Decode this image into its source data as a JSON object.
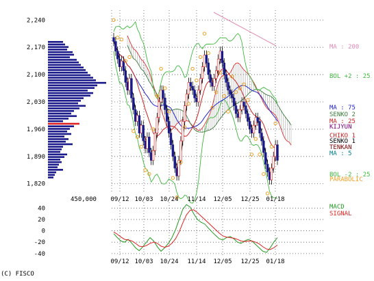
{
  "copyright": "(C) FISCO",
  "chart_data": [
    {
      "type": "candlestick",
      "title": "",
      "x_ticks": [
        "09/12",
        "10/03",
        "10/24",
        "11/14",
        "12/05",
        "12/25",
        "01/18"
      ],
      "y_ticks": [
        2240,
        2170,
        2100,
        2030,
        1960,
        1890,
        1820
      ],
      "ylim": [
        1795,
        2265
      ],
      "grid": true,
      "volume_profile_label": "450,000",
      "legend": [
        {
          "label": "MA : 200",
          "color": "#e08ab5"
        },
        {
          "label": "BOL +2 : 25",
          "color": "#3cb83c"
        },
        {
          "label": "MA : 75",
          "color": "#2222cc"
        },
        {
          "label": "SENKO 2",
          "color": "#3a7a3a"
        },
        {
          "label": "MA : 25",
          "color": "#cc2222"
        },
        {
          "label": "KIJYUN",
          "color": "#800080"
        },
        {
          "label": "CHIKO 1",
          "color": "#cc2222"
        },
        {
          "label": "SENKO 1",
          "color": "#000000"
        },
        {
          "label": "TENKAN",
          "color": "#800000"
        },
        {
          "label": "MA : 5",
          "color": "#00808a"
        },
        {
          "label": "BOL -2 : 25",
          "color": "#3cb83c"
        },
        {
          "label": "PARABOLIC",
          "color": "#f0a020"
        }
      ],
      "close": [
        2185,
        2160,
        2140,
        2120,
        2135,
        2110,
        2080,
        2060,
        2090,
        2040,
        2010,
        1980,
        1995,
        1950,
        1970,
        1930,
        1910,
        1940,
        1900,
        1880,
        1905,
        1950,
        1990,
        2030,
        2060,
        2040,
        2010,
        1980,
        1950,
        1920,
        1890,
        1860,
        1840,
        1880,
        1930,
        1980,
        2020,
        2050,
        2080,
        2070,
        2060,
        2040,
        2030,
        2060,
        2090,
        2120,
        2150,
        2130,
        2100,
        2080,
        2070,
        2090,
        2110,
        2140,
        2160,
        2130,
        2100,
        2080,
        2060,
        2050,
        2040,
        2020,
        2000,
        1990,
        2010,
        2030,
        2020,
        2000,
        1980,
        1960,
        1950,
        1970,
        1990,
        1980,
        1950,
        1930,
        1900,
        1870,
        1850,
        1830,
        1860,
        1890,
        1920,
        1880
      ]
    },
    {
      "type": "line",
      "title": "",
      "x_ticks": [
        "09/12",
        "10/03",
        "10/24",
        "11/14",
        "12/05",
        "12/25",
        "01/18"
      ],
      "y_ticks": [
        40,
        20,
        0,
        -20,
        -40
      ],
      "ylim": [
        -45,
        50
      ],
      "grid": true,
      "series": [
        {
          "name": "MACD",
          "color": "#229922",
          "values": [
            -5,
            -12,
            -18,
            -20,
            -15,
            -22,
            -30,
            -35,
            -28,
            -20,
            -12,
            -18,
            -28,
            -36,
            -30,
            -22,
            -12,
            2,
            20,
            38,
            46,
            42,
            30,
            20,
            15,
            12,
            5,
            -2,
            -8,
            -14,
            -16,
            -12,
            -10,
            -14,
            -20,
            -22,
            -18,
            -15,
            -18,
            -24,
            -30,
            -36,
            -38,
            -30,
            -20,
            -12
          ]
        },
        {
          "name": "SIGNAL",
          "color": "#dd2222",
          "values": [
            -2,
            -6,
            -11,
            -15,
            -16,
            -18,
            -22,
            -27,
            -28,
            -26,
            -22,
            -20,
            -22,
            -27,
            -29,
            -27,
            -22,
            -14,
            -2,
            14,
            28,
            36,
            37,
            32,
            26,
            20,
            14,
            8,
            2,
            -4,
            -9,
            -11,
            -12,
            -13,
            -15,
            -18,
            -19,
            -18,
            -18,
            -20,
            -23,
            -28,
            -32,
            -33,
            -30,
            -25
          ]
        }
      ]
    }
  ]
}
